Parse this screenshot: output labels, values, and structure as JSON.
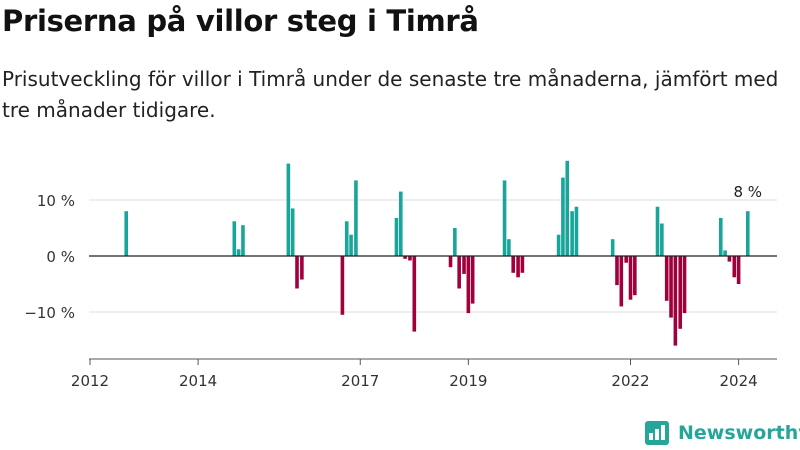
{
  "header": {
    "title": "Priserna på villor steg i Timrå",
    "subtitle": "Prisutveckling för villor i Timrå under de senaste tre månaderna, jämfört med tre månader tidigare."
  },
  "brand": {
    "name": "Newsworthy",
    "icon": "newsworthy-logo-icon"
  },
  "colors": {
    "positive": "#1aa59a",
    "negative": "#a0003b",
    "grid": "#dddddd",
    "axis": "#222222"
  },
  "chart_data": {
    "type": "bar",
    "title": "",
    "xlabel": "",
    "ylabel": "",
    "ylim": [
      -18,
      20
    ],
    "yticks": [
      {
        "value": 10,
        "label": "10 %"
      },
      {
        "value": 0,
        "label": "0 %"
      },
      {
        "value": -10,
        "label": "−10 %"
      }
    ],
    "xticks": [
      {
        "value": 2012,
        "label": "2012"
      },
      {
        "value": 2014,
        "label": "2014"
      },
      {
        "value": 2017,
        "label": "2017"
      },
      {
        "value": 2019,
        "label": "2019"
      },
      {
        "value": 2022,
        "label": "2022"
      },
      {
        "value": 2024,
        "label": "2024"
      }
    ],
    "xlim": [
      2012,
      2024.75
    ],
    "grid": true,
    "annotations": [
      {
        "x": 2024.17,
        "y": 8,
        "text": "8 %"
      }
    ],
    "bars": [
      {
        "x": 2012.67,
        "value": 8
      },
      {
        "x": 2014.67,
        "value": 6.2
      },
      {
        "x": 2014.75,
        "value": 1.2
      },
      {
        "x": 2014.83,
        "value": 5.5
      },
      {
        "x": 2015.67,
        "value": 16.5
      },
      {
        "x": 2015.75,
        "value": 8.5
      },
      {
        "x": 2015.83,
        "value": -5.8
      },
      {
        "x": 2015.92,
        "value": -4.2
      },
      {
        "x": 2016.67,
        "value": -10.5
      },
      {
        "x": 2016.75,
        "value": 6.2
      },
      {
        "x": 2016.83,
        "value": 3.8
      },
      {
        "x": 2016.92,
        "value": 13.5
      },
      {
        "x": 2017.67,
        "value": 6.8
      },
      {
        "x": 2017.75,
        "value": 11.5
      },
      {
        "x": 2017.83,
        "value": -0.5
      },
      {
        "x": 2017.92,
        "value": -0.8
      },
      {
        "x": 2018.0,
        "value": -13.5
      },
      {
        "x": 2018.67,
        "value": -2.0
      },
      {
        "x": 2018.75,
        "value": 5.0
      },
      {
        "x": 2018.83,
        "value": -5.8
      },
      {
        "x": 2018.92,
        "value": -3.2
      },
      {
        "x": 2019.0,
        "value": -10.2
      },
      {
        "x": 2019.08,
        "value": -8.5
      },
      {
        "x": 2019.67,
        "value": 13.5
      },
      {
        "x": 2019.75,
        "value": 3.0
      },
      {
        "x": 2019.83,
        "value": -3.0
      },
      {
        "x": 2019.92,
        "value": -3.8
      },
      {
        "x": 2020.0,
        "value": -3.0
      },
      {
        "x": 2020.67,
        "value": 3.8
      },
      {
        "x": 2020.75,
        "value": 14.0
      },
      {
        "x": 2020.83,
        "value": 17.0
      },
      {
        "x": 2020.92,
        "value": 8.0
      },
      {
        "x": 2021.0,
        "value": 8.8
      },
      {
        "x": 2021.67,
        "value": 3.0
      },
      {
        "x": 2021.75,
        "value": -5.2
      },
      {
        "x": 2021.83,
        "value": -9.0
      },
      {
        "x": 2021.92,
        "value": -1.2
      },
      {
        "x": 2022.0,
        "value": -7.8
      },
      {
        "x": 2022.08,
        "value": -7.0
      },
      {
        "x": 2022.5,
        "value": 8.8
      },
      {
        "x": 2022.58,
        "value": 5.8
      },
      {
        "x": 2022.67,
        "value": -8.0
      },
      {
        "x": 2022.75,
        "value": -11.0
      },
      {
        "x": 2022.83,
        "value": -16.0
      },
      {
        "x": 2022.92,
        "value": -13.0
      },
      {
        "x": 2023.0,
        "value": -10.2
      },
      {
        "x": 2023.67,
        "value": 6.8
      },
      {
        "x": 2023.75,
        "value": 1.0
      },
      {
        "x": 2023.83,
        "value": -1.0
      },
      {
        "x": 2023.92,
        "value": -3.8
      },
      {
        "x": 2024.0,
        "value": -5.0
      },
      {
        "x": 2024.17,
        "value": 8.0
      }
    ]
  }
}
